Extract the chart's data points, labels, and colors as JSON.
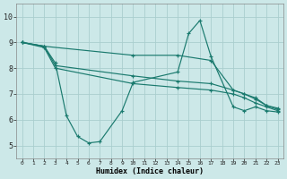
{
  "title": "",
  "xlabel": "Humidex (Indice chaleur)",
  "bg_color": "#cce8e8",
  "grid_color": "#aacece",
  "line_color": "#1a7a6e",
  "xlim": [
    -0.5,
    23.5
  ],
  "ylim": [
    4.5,
    10.5
  ],
  "yticks": [
    5,
    6,
    7,
    8,
    9,
    10
  ],
  "xticks": [
    0,
    1,
    2,
    3,
    4,
    5,
    6,
    7,
    8,
    9,
    10,
    11,
    12,
    13,
    14,
    15,
    16,
    17,
    18,
    19,
    20,
    21,
    22,
    23
  ],
  "lines": [
    {
      "x": [
        0,
        2,
        3,
        4,
        5,
        6,
        7,
        9,
        10,
        14,
        15,
        16,
        17,
        19,
        20,
        21,
        22,
        23
      ],
      "y": [
        9.0,
        8.85,
        8.2,
        6.15,
        5.35,
        5.1,
        5.15,
        6.35,
        7.45,
        7.85,
        9.35,
        9.85,
        8.45,
        6.5,
        6.35,
        6.5,
        6.35,
        6.3
      ]
    },
    {
      "x": [
        0,
        2,
        10,
        14,
        17,
        19,
        20,
        21,
        22,
        23
      ],
      "y": [
        9.0,
        8.85,
        8.5,
        8.5,
        8.3,
        7.15,
        7.0,
        6.85,
        6.55,
        6.45
      ]
    },
    {
      "x": [
        0,
        2,
        3,
        10,
        14,
        17,
        19,
        20,
        21,
        22,
        23
      ],
      "y": [
        9.0,
        8.85,
        8.1,
        7.7,
        7.5,
        7.4,
        7.15,
        7.0,
        6.8,
        6.55,
        6.4
      ]
    },
    {
      "x": [
        0,
        2,
        3,
        10,
        14,
        17,
        19,
        20,
        21,
        22,
        23
      ],
      "y": [
        9.0,
        8.8,
        8.0,
        7.4,
        7.25,
        7.15,
        7.0,
        6.85,
        6.65,
        6.5,
        6.35
      ]
    }
  ]
}
